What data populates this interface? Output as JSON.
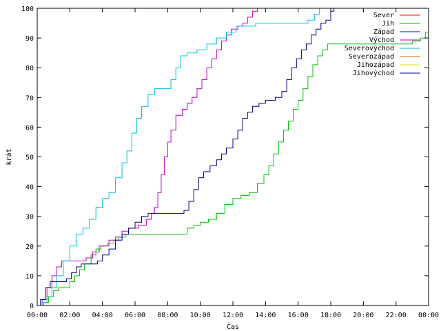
{
  "chart_data": {
    "type": "line",
    "title": "",
    "xlabel": "Čas",
    "ylabel": "krát",
    "xlim": [
      0,
      24
    ],
    "ylim": [
      0,
      100
    ],
    "x_ticks": [
      "00:00",
      "02:00",
      "04:00",
      "06:00",
      "08:00",
      "10:00",
      "12:00",
      "14:00",
      "16:00",
      "18:00",
      "20:00",
      "22:00",
      "00:00"
    ],
    "y_ticks": [
      0,
      10,
      20,
      30,
      40,
      50,
      60,
      70,
      80,
      90,
      100
    ],
    "grid": false,
    "legend_position": "top-right",
    "series": [
      {
        "name": "Sever",
        "color": "#ff0000",
        "points": []
      },
      {
        "name": "Jih",
        "color": "#00c000",
        "points": [
          [
            0.0,
            0
          ],
          [
            0.4,
            1
          ],
          [
            0.7,
            3
          ],
          [
            1.0,
            5
          ],
          [
            1.3,
            6
          ],
          [
            1.6,
            6
          ],
          [
            2.0,
            8
          ],
          [
            2.3,
            10
          ],
          [
            2.6,
            12
          ],
          [
            2.9,
            14
          ],
          [
            3.3,
            17
          ],
          [
            3.6,
            19
          ],
          [
            3.9,
            20
          ],
          [
            4.3,
            21
          ],
          [
            4.7,
            22
          ],
          [
            5.0,
            23
          ],
          [
            5.4,
            24
          ],
          [
            6.0,
            24
          ],
          [
            7.0,
            24
          ],
          [
            8.0,
            24
          ],
          [
            9.0,
            24
          ],
          [
            9.2,
            26
          ],
          [
            9.6,
            27
          ],
          [
            10.0,
            28
          ],
          [
            10.5,
            29
          ],
          [
            11.0,
            31
          ],
          [
            11.5,
            34
          ],
          [
            12.0,
            36
          ],
          [
            12.5,
            37
          ],
          [
            13.0,
            38
          ],
          [
            13.5,
            41
          ],
          [
            13.9,
            44
          ],
          [
            14.2,
            47
          ],
          [
            14.5,
            51
          ],
          [
            14.8,
            55
          ],
          [
            15.1,
            59
          ],
          [
            15.4,
            62
          ],
          [
            15.7,
            66
          ],
          [
            16.0,
            69
          ],
          [
            16.3,
            73
          ],
          [
            16.6,
            77
          ],
          [
            16.9,
            81
          ],
          [
            17.2,
            84
          ],
          [
            17.5,
            86
          ],
          [
            17.8,
            88
          ],
          [
            18.5,
            88
          ],
          [
            19.5,
            88
          ],
          [
            20.5,
            88
          ],
          [
            21.5,
            88
          ],
          [
            22.5,
            88
          ],
          [
            23.0,
            89
          ],
          [
            23.5,
            90
          ],
          [
            23.8,
            92
          ],
          [
            24.0,
            92
          ]
        ]
      },
      {
        "name": "Západ",
        "color": "#0000ff",
        "points": []
      },
      {
        "name": "Východ",
        "color": "#c000c0",
        "points": [
          [
            0.0,
            0
          ],
          [
            0.3,
            2
          ],
          [
            0.6,
            6
          ],
          [
            0.9,
            10
          ],
          [
            1.2,
            13
          ],
          [
            1.5,
            15
          ],
          [
            2.0,
            15
          ],
          [
            2.6,
            15
          ],
          [
            3.0,
            16
          ],
          [
            3.4,
            18
          ],
          [
            3.8,
            20
          ],
          [
            4.4,
            22
          ],
          [
            4.8,
            23
          ],
          [
            5.2,
            25
          ],
          [
            5.6,
            26
          ],
          [
            6.2,
            27
          ],
          [
            6.7,
            29
          ],
          [
            7.0,
            31
          ],
          [
            7.2,
            33
          ],
          [
            7.4,
            38
          ],
          [
            7.6,
            44
          ],
          [
            7.8,
            50
          ],
          [
            8.0,
            55
          ],
          [
            8.2,
            59
          ],
          [
            8.5,
            64
          ],
          [
            8.9,
            66
          ],
          [
            9.2,
            68
          ],
          [
            9.5,
            70
          ],
          [
            9.8,
            73
          ],
          [
            10.1,
            76
          ],
          [
            10.4,
            80
          ],
          [
            10.7,
            83
          ],
          [
            11.0,
            86
          ],
          [
            11.3,
            89
          ],
          [
            11.6,
            91
          ],
          [
            11.9,
            93
          ],
          [
            12.3,
            94
          ],
          [
            12.6,
            95
          ],
          [
            12.9,
            97
          ],
          [
            13.2,
            99
          ],
          [
            13.5,
            100
          ]
        ]
      },
      {
        "name": "Severovýchod",
        "color": "#00c0e0",
        "points": [
          [
            0.0,
            0
          ],
          [
            0.3,
            1
          ],
          [
            0.6,
            3
          ],
          [
            0.9,
            6
          ],
          [
            1.2,
            10
          ],
          [
            1.6,
            15
          ],
          [
            2.0,
            20
          ],
          [
            2.4,
            24
          ],
          [
            2.8,
            26
          ],
          [
            3.2,
            29
          ],
          [
            3.6,
            33
          ],
          [
            4.0,
            36
          ],
          [
            4.4,
            38
          ],
          [
            4.8,
            43
          ],
          [
            5.2,
            48
          ],
          [
            5.5,
            52
          ],
          [
            5.8,
            58
          ],
          [
            6.1,
            63
          ],
          [
            6.4,
            67
          ],
          [
            6.8,
            71
          ],
          [
            7.2,
            73
          ],
          [
            7.8,
            73
          ],
          [
            8.2,
            76
          ],
          [
            8.5,
            80
          ],
          [
            8.8,
            84
          ],
          [
            9.2,
            85
          ],
          [
            9.8,
            86
          ],
          [
            10.4,
            88
          ],
          [
            11.0,
            90
          ],
          [
            11.6,
            92
          ],
          [
            12.2,
            94
          ],
          [
            12.8,
            94
          ],
          [
            13.4,
            95
          ],
          [
            14.0,
            95
          ],
          [
            15.0,
            95
          ],
          [
            16.0,
            95
          ],
          [
            16.6,
            96
          ],
          [
            17.0,
            98
          ],
          [
            17.3,
            100
          ],
          [
            17.6,
            100
          ]
        ]
      },
      {
        "name": "Severozápad",
        "color": "#e06000",
        "points": []
      },
      {
        "name": "Jihozápad",
        "color": "#e0e000",
        "points": []
      },
      {
        "name": "Jihovýchod",
        "color": "#000080",
        "points": [
          [
            0.0,
            0
          ],
          [
            0.2,
            2
          ],
          [
            0.5,
            6
          ],
          [
            0.8,
            8
          ],
          [
            1.2,
            8
          ],
          [
            1.5,
            8
          ],
          [
            1.8,
            9
          ],
          [
            2.1,
            11
          ],
          [
            2.4,
            13
          ],
          [
            2.7,
            14
          ],
          [
            3.3,
            14
          ],
          [
            3.7,
            15
          ],
          [
            4.0,
            17
          ],
          [
            4.4,
            19
          ],
          [
            4.8,
            22
          ],
          [
            5.2,
            24
          ],
          [
            5.6,
            26
          ],
          [
            6.0,
            28
          ],
          [
            6.4,
            30
          ],
          [
            6.8,
            31
          ],
          [
            7.5,
            31
          ],
          [
            8.3,
            31
          ],
          [
            9.0,
            32
          ],
          [
            9.3,
            35
          ],
          [
            9.6,
            39
          ],
          [
            9.9,
            43
          ],
          [
            10.2,
            45
          ],
          [
            10.6,
            47
          ],
          [
            11.0,
            49
          ],
          [
            11.3,
            51
          ],
          [
            11.6,
            53
          ],
          [
            12.0,
            56
          ],
          [
            12.3,
            59
          ],
          [
            12.6,
            63
          ],
          [
            12.9,
            65
          ],
          [
            13.2,
            67
          ],
          [
            13.6,
            68
          ],
          [
            14.0,
            69
          ],
          [
            14.6,
            70
          ],
          [
            15.0,
            72
          ],
          [
            15.3,
            76
          ],
          [
            15.6,
            80
          ],
          [
            15.9,
            83
          ],
          [
            16.2,
            86
          ],
          [
            16.5,
            88
          ],
          [
            16.8,
            91
          ],
          [
            17.1,
            93
          ],
          [
            17.4,
            95
          ],
          [
            17.7,
            96
          ],
          [
            18.0,
            99
          ],
          [
            18.2,
            100
          ]
        ]
      }
    ]
  }
}
